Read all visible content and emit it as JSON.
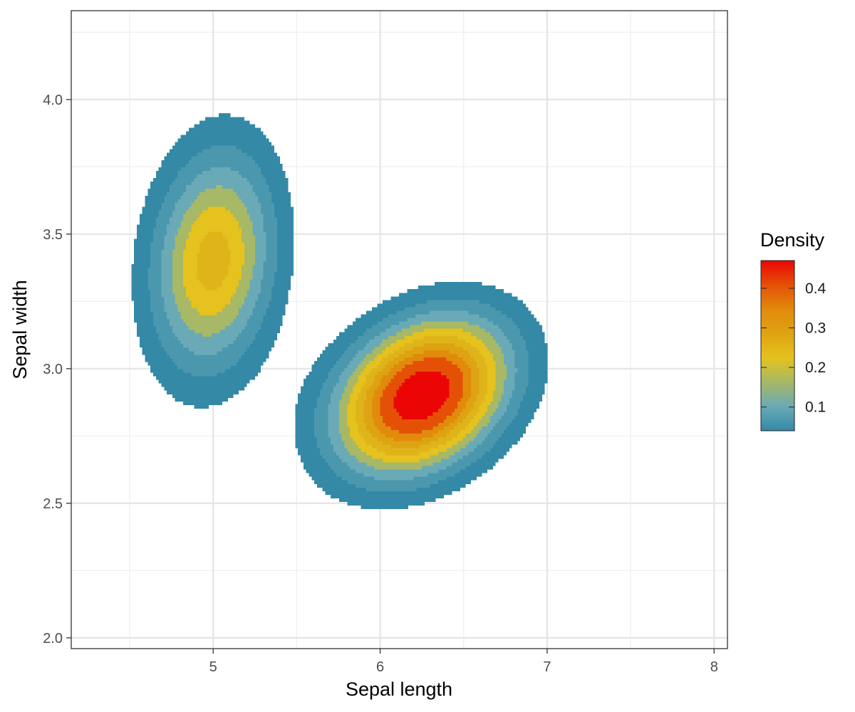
{
  "chart_data": {
    "type": "density2d_filled",
    "title": "",
    "xlabel": "Sepal length",
    "ylabel": "Sepal width",
    "xlim": [
      4.15,
      8.08
    ],
    "ylim": [
      1.96,
      4.33
    ],
    "x_ticks": [
      5,
      6,
      7,
      8
    ],
    "x_tick_labels": [
      "5",
      "6",
      "7",
      "8"
    ],
    "y_ticks": [
      2.0,
      2.5,
      3.0,
      3.5,
      4.0
    ],
    "y_tick_labels": [
      "2.0",
      "2.5",
      "3.0",
      "3.5",
      "4.0"
    ],
    "grid": true,
    "data_range": {
      "x": [
        4.3,
        7.9
      ],
      "y": [
        2.0,
        4.4
      ]
    },
    "density_peaks": [
      {
        "x": 6.25,
        "y": 2.9,
        "sx": 0.34,
        "sy": 0.19,
        "rho": 0.3,
        "weight": 1.0
      },
      {
        "x": 5.0,
        "y": 3.4,
        "sx": 0.25,
        "sy": 0.28,
        "rho": 0.15,
        "weight": 0.55
      }
    ],
    "levels": [
      {
        "min": 0.04,
        "max": 0.08,
        "color": "#3389a6"
      },
      {
        "min": 0.08,
        "max": 0.12,
        "color": "#4b98ae"
      },
      {
        "min": 0.12,
        "max": 0.16,
        "color": "#6aaab7"
      },
      {
        "min": 0.16,
        "max": 0.2,
        "color": "#a7b866"
      },
      {
        "min": 0.2,
        "max": 0.24,
        "color": "#e5c21d"
      },
      {
        "min": 0.24,
        "max": 0.28,
        "color": "#dfb41a"
      },
      {
        "min": 0.28,
        "max": 0.32,
        "color": "#dea312"
      },
      {
        "min": 0.32,
        "max": 0.36,
        "color": "#e28a0b"
      },
      {
        "min": 0.36,
        "max": 0.42,
        "color": "#e45106"
      },
      {
        "min": 0.42,
        "max": 0.47,
        "color": "#ec0505"
      }
    ],
    "legend": {
      "title": "Density",
      "position": "right",
      "range": [
        0.04,
        0.47
      ],
      "ticks": [
        0.1,
        0.2,
        0.3,
        0.4
      ],
      "tick_labels": [
        "0.1",
        "0.2",
        "0.3",
        "0.4"
      ],
      "gradient": [
        "#3389a6",
        "#6aaab7",
        "#a7b866",
        "#e5c21d",
        "#dea312",
        "#e28a0b",
        "#e45106",
        "#ec0505"
      ]
    }
  }
}
